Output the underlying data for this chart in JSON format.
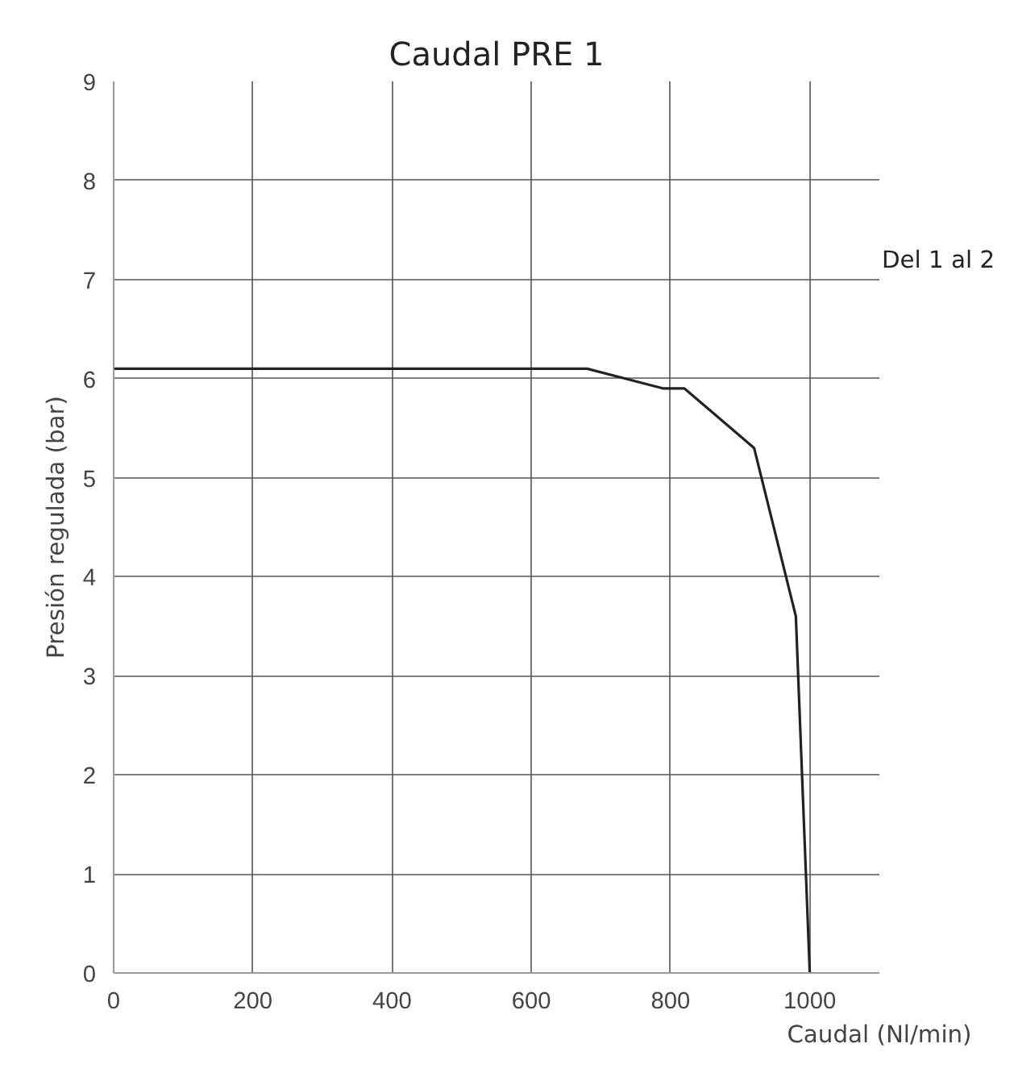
{
  "chart_data": {
    "type": "line",
    "title": "Caudal PRE 1",
    "xlabel": "Caudal (Nl/min)",
    "ylabel": "Presión regulada (bar)",
    "annotations": [
      "Del 1 al 2"
    ],
    "x": [
      0,
      680,
      790,
      820,
      920,
      980,
      1000
    ],
    "series": [
      {
        "color": "#222222",
        "values": [
          6.1,
          6.1,
          5.9,
          5.9,
          5.3,
          3.6,
          0
        ]
      }
    ],
    "xlim": [
      0,
      1100
    ],
    "xticks": [
      0,
      200,
      400,
      600,
      800,
      1000
    ],
    "ylim": [
      0,
      9
    ],
    "yticks": [
      0,
      1,
      2,
      3,
      4,
      5,
      6,
      7,
      8,
      9
    ],
    "grid": true,
    "marker": "none",
    "line_style": "solid"
  }
}
